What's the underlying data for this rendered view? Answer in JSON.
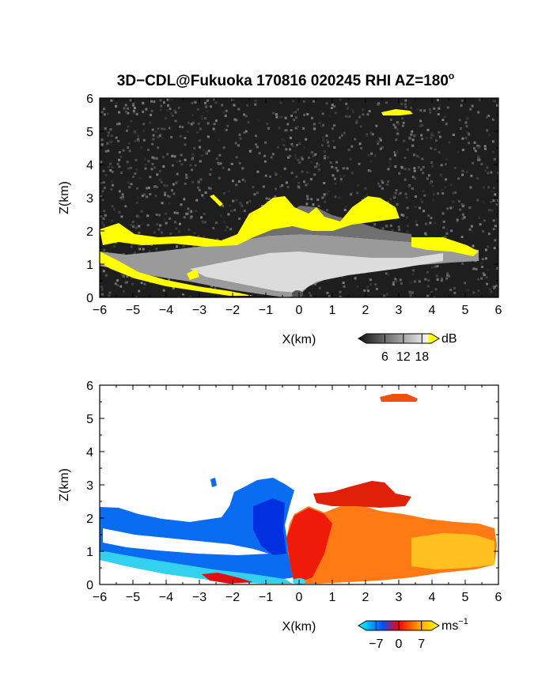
{
  "title": "3D−CDL@Fukuoka 170816 020245 RHI AZ=180",
  "title_superscript": "o",
  "chart_data": [
    {
      "type": "heatmap",
      "name": "intensity",
      "xlabel": "X(km)",
      "ylabel": "Z(km)",
      "xlim": [
        -6,
        6
      ],
      "ylim": [
        0,
        6
      ],
      "xticks": [
        "−6",
        "−5",
        "−4",
        "−3",
        "−2",
        "−1",
        "0",
        "1",
        "2",
        "3",
        "4",
        "5",
        "6"
      ],
      "yticks": [
        "0",
        "1",
        "2",
        "3",
        "4",
        "5",
        "6"
      ],
      "colorbar": {
        "unit": "dB",
        "ticks": [
          "6",
          "12",
          "18"
        ],
        "tick_values": [
          6,
          12,
          18
        ],
        "range": [
          0,
          21
        ],
        "colors": [
          "#101010",
          "#8a8a8a",
          "#f2f2f2",
          "#ffff00"
        ]
      },
      "background": "#1e1e1e",
      "highlight_color": "#ffff00"
    },
    {
      "type": "heatmap",
      "name": "velocity",
      "xlabel": "X(km)",
      "ylabel": "Z(km)",
      "xlim": [
        -6,
        6
      ],
      "ylim": [
        0,
        6
      ],
      "xticks": [
        "−6",
        "−5",
        "−4",
        "−3",
        "−2",
        "−1",
        "0",
        "1",
        "2",
        "3",
        "4",
        "5",
        "6"
      ],
      "yticks": [
        "0",
        "1",
        "2",
        "3",
        "4",
        "5",
        "6"
      ],
      "colorbar": {
        "unit": "ms",
        "unit_superscript": "−1",
        "ticks": [
          "−7",
          "0",
          "7"
        ],
        "tick_values": [
          -7,
          0,
          7
        ],
        "range": [
          -10,
          10
        ],
        "colors": [
          "#00ffff",
          "#0050ff",
          "#ff0000",
          "#ffa000",
          "#ffff00"
        ]
      },
      "background": "#ffffff"
    }
  ]
}
